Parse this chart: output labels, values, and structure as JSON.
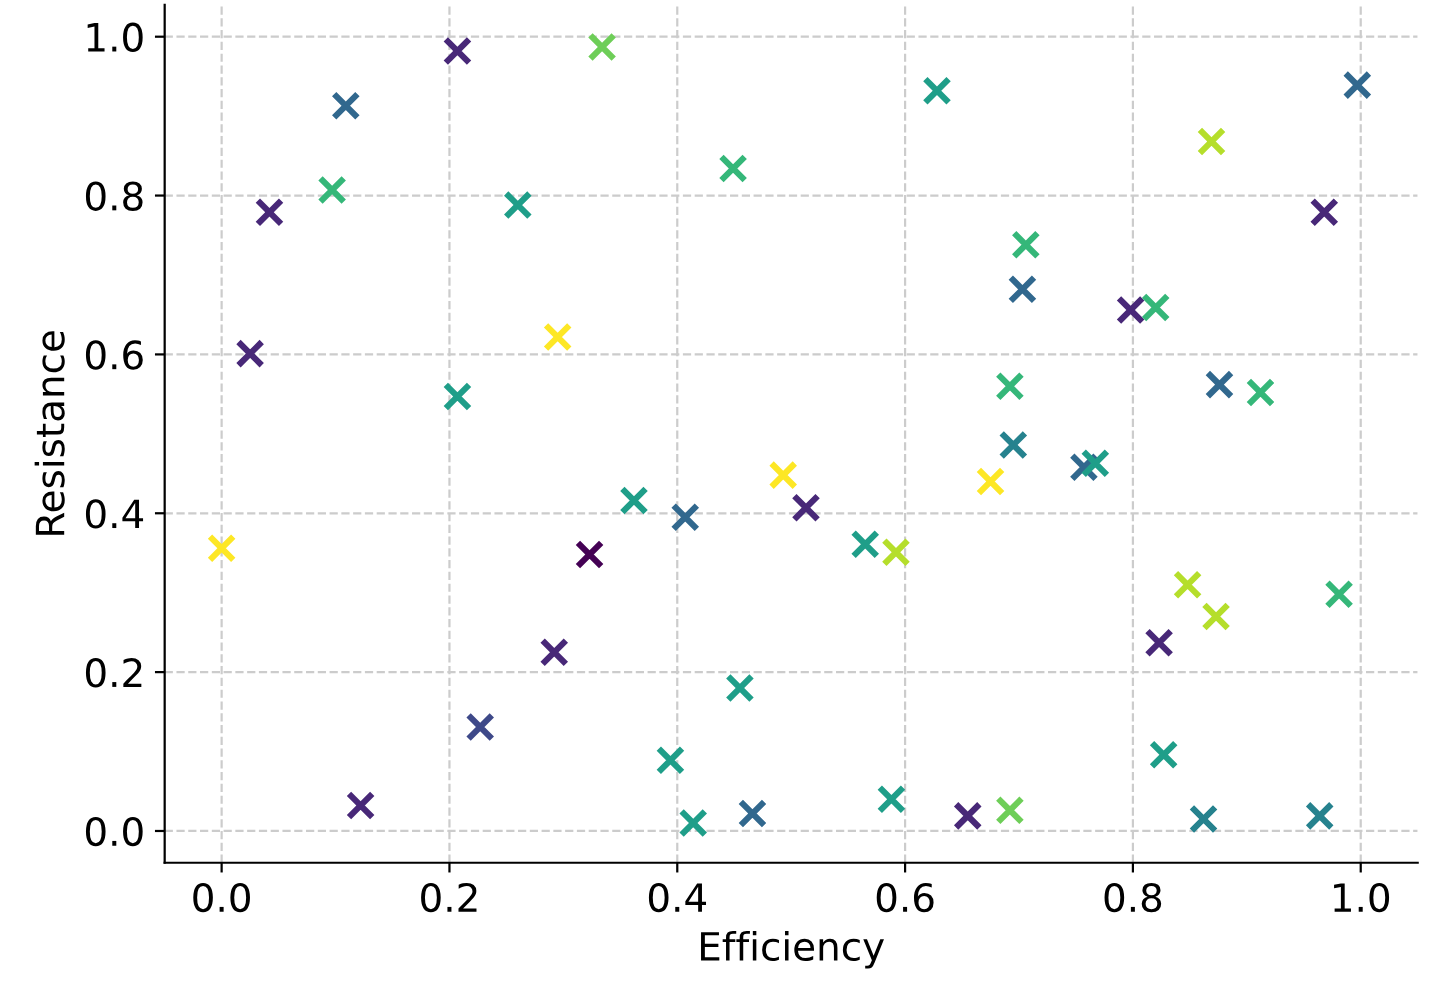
{
  "chart_data": {
    "type": "scatter",
    "xlabel": "Efficiency",
    "ylabel": "Resistance",
    "marker": "cross",
    "grid": true,
    "xlim": [
      -0.05,
      1.05
    ],
    "ylim": [
      -0.04,
      1.04
    ],
    "xticks": [
      {
        "value": 0,
        "label": "0.0"
      },
      {
        "value": 0.2,
        "label": "0.2"
      },
      {
        "value": 0.4,
        "label": "0.4"
      },
      {
        "value": 0.6,
        "label": "0.6"
      },
      {
        "value": 0.8,
        "label": "0.8"
      },
      {
        "value": 1,
        "label": "1.0"
      }
    ],
    "yticks": [
      {
        "value": 0,
        "label": "0.0"
      },
      {
        "value": 0.2,
        "label": "0.2"
      },
      {
        "value": 0.4,
        "label": "0.4"
      },
      {
        "value": 0.6,
        "label": "0.6"
      },
      {
        "value": 0.8,
        "label": "0.8"
      },
      {
        "value": 1,
        "label": "1.0"
      }
    ],
    "x": [
      0.0,
      0.042,
      0.025,
      0.109,
      0.097,
      0.207,
      0.334,
      0.26,
      0.207,
      0.295,
      0.449,
      0.628,
      0.869,
      0.997,
      0.968,
      0.706,
      0.703,
      0.798,
      0.82,
      0.876,
      0.912,
      0.692,
      0.695,
      0.757,
      0.767,
      0.675,
      0.493,
      0.513,
      0.565,
      0.592,
      0.362,
      0.407,
      0.323,
      0.292,
      0.227,
      0.122,
      0.455,
      0.394,
      0.414,
      0.466,
      0.588,
      0.655,
      0.692,
      0.823,
      0.848,
      0.873,
      0.981,
      0.827,
      0.862,
      0.964
    ],
    "values": [
      0.356,
      0.779,
      0.601,
      0.913,
      0.807,
      0.982,
      0.987,
      0.788,
      0.547,
      0.622,
      0.834,
      0.932,
      0.868,
      0.939,
      0.779,
      0.738,
      0.682,
      0.656,
      0.659,
      0.562,
      0.552,
      0.56,
      0.486,
      0.458,
      0.463,
      0.44,
      0.448,
      0.407,
      0.361,
      0.351,
      0.416,
      0.395,
      0.348,
      0.225,
      0.131,
      0.032,
      0.18,
      0.089,
      0.01,
      0.022,
      0.04,
      0.019,
      0.026,
      0.237,
      0.31,
      0.27,
      0.298,
      0.096,
      0.015,
      0.019
    ],
    "colors": [
      "#fde725",
      "#482878",
      "#482878",
      "#31688e",
      "#35b779",
      "#482878",
      "#6ece58",
      "#1f9e89",
      "#1f9e89",
      "#fde725",
      "#35b779",
      "#1f9e89",
      "#b5de2b",
      "#31688e",
      "#482878",
      "#35b779",
      "#31688e",
      "#482878",
      "#35b779",
      "#31688e",
      "#35b779",
      "#35b779",
      "#26828e",
      "#31688e",
      "#1f9e89",
      "#fde725",
      "#fde725",
      "#482878",
      "#1f9e89",
      "#b5de2b",
      "#1f9e89",
      "#31688e",
      "#440154",
      "#482878",
      "#3e4989",
      "#482878",
      "#1f9e89",
      "#1f9e89",
      "#1f9e89",
      "#31688e",
      "#1f9e89",
      "#482878",
      "#6ece58",
      "#482878",
      "#b5de2b",
      "#b5de2b",
      "#35b779",
      "#1f9e89",
      "#26828e",
      "#26828e"
    ]
  }
}
